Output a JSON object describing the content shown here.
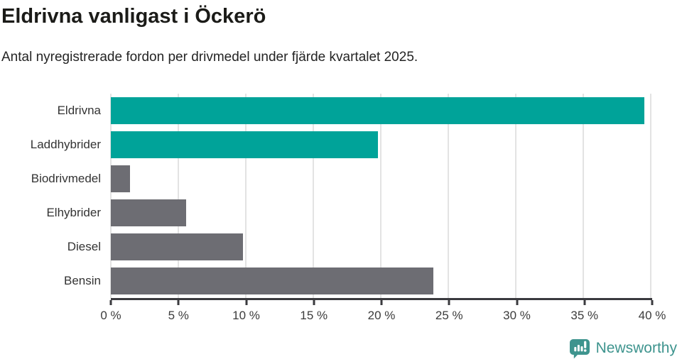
{
  "header": {
    "title": "Eldrivna vanligast i Öckerö",
    "subtitle": "Antal nyregistrerade fordon per drivmedel under fjärde kvartalet 2025."
  },
  "chart_data": {
    "type": "bar",
    "orientation": "horizontal",
    "title": "Eldrivna vanligast i Öckerö",
    "subtitle": "Antal nyregistrerade fordon per drivmedel under fjärde kvartalet 2025.",
    "categories": [
      "Eldrivna",
      "Laddhybrider",
      "Biodrivmedel",
      "Elhybrider",
      "Diesel",
      "Bensin"
    ],
    "values": [
      39.5,
      19.8,
      1.4,
      5.6,
      9.8,
      23.9
    ],
    "value_unit": "%",
    "highlighted": [
      true,
      true,
      false,
      false,
      false,
      false
    ],
    "xlabel": "",
    "ylabel": "",
    "xlim": [
      0,
      40
    ],
    "xticks": [
      0,
      5,
      10,
      15,
      20,
      25,
      30,
      35,
      40
    ],
    "xtick_labels": [
      "0 %",
      "5 %",
      "10 %",
      "15 %",
      "20 %",
      "25 %",
      "30 %",
      "35 %",
      "40 %"
    ],
    "grid": "vertical",
    "legend": "none",
    "colors": {
      "highlight": "#00A399",
      "default": "#6D6D73",
      "gridline": "#e3e3e3",
      "axis": "#3a3a3e"
    }
  },
  "footer": {
    "brand": "Newsworthy",
    "brand_color": "#3E948E",
    "logo_icon": "speech-bubble-bar-chart-icon"
  }
}
